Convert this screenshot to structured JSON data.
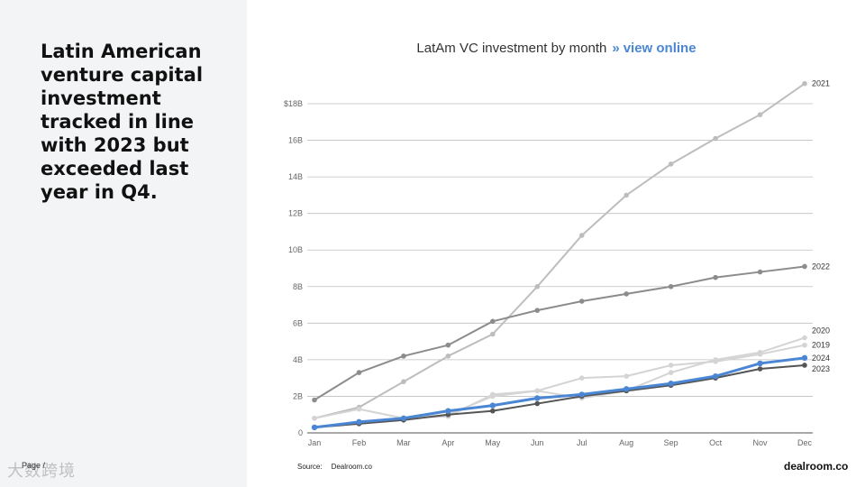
{
  "headline": "Latin American venture capital investment tracked in line with 2023 but exceeded last year in Q4.",
  "page_label": "Page /",
  "watermark": "大数跨境",
  "chart_title": {
    "text": "LatAm VC investment by month",
    "arrow": "»",
    "link": "view online"
  },
  "source": {
    "label": "Source:",
    "value": "Dealroom.co"
  },
  "brand": "dealroom.co",
  "colors": {
    "accent": "#4a86d4",
    "dark_line": "#555555",
    "mid_line": "#8c8c8c",
    "light_line": "#bdbdbd",
    "lighter_line": "#d4d4d4"
  },
  "chart_data": {
    "type": "line",
    "title": "LatAm VC investment by month",
    "xlabel": "",
    "ylabel": "",
    "categories": [
      "Jan",
      "Feb",
      "Mar",
      "Apr",
      "May",
      "Jun",
      "Jul",
      "Aug",
      "Sep",
      "Oct",
      "Nov",
      "Dec"
    ],
    "y_ticks": [
      "0",
      "2B",
      "4B",
      "6B",
      "8B",
      "10B",
      "12B",
      "14B",
      "16B",
      "$18B"
    ],
    "ylim": [
      0,
      18
    ],
    "grid": true,
    "legend": "inline labels at line ends",
    "series": [
      {
        "name": "2021",
        "values": [
          0.8,
          1.4,
          2.8,
          4.2,
          5.4,
          8.0,
          10.8,
          13.0,
          14.7,
          16.1,
          17.4,
          19.1
        ]
      },
      {
        "name": "2022",
        "values": [
          1.8,
          3.3,
          4.2,
          4.8,
          6.1,
          6.7,
          7.2,
          7.6,
          8.0,
          8.5,
          8.8,
          9.1
        ]
      },
      {
        "name": "2020",
        "values": [
          0.3,
          0.5,
          0.8,
          0.9,
          2.1,
          2.3,
          1.9,
          2.3,
          3.3,
          4.0,
          4.4,
          5.2
        ]
      },
      {
        "name": "2019",
        "values": [
          0.8,
          1.3,
          0.8,
          1.0,
          2.0,
          2.3,
          3.0,
          3.1,
          3.7,
          3.9,
          4.3,
          4.8
        ]
      },
      {
        "name": "2024",
        "values": [
          0.3,
          0.6,
          0.8,
          1.2,
          1.5,
          1.9,
          2.1,
          2.4,
          2.7,
          3.1,
          3.8,
          4.1
        ]
      },
      {
        "name": "2023",
        "values": [
          0.3,
          0.5,
          0.7,
          1.0,
          1.2,
          1.6,
          2.0,
          2.3,
          2.6,
          3.0,
          3.5,
          3.7
        ]
      }
    ]
  }
}
